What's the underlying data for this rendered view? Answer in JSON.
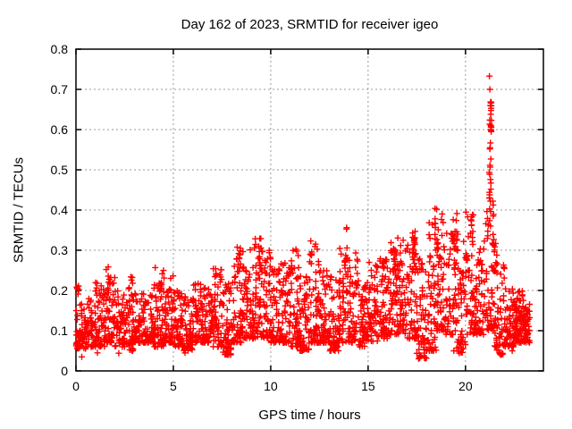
{
  "chart_data": {
    "type": "scatter",
    "title": "Day 162 of 2023, SRMTID for receiver igeo",
    "xlabel": "GPS time / hours",
    "ylabel": "SRMTID / TECUs",
    "xlim": [
      0,
      24
    ],
    "ylim": [
      0,
      0.8
    ],
    "xticks": {
      "values": [
        0,
        5,
        10,
        15,
        20
      ],
      "labels": [
        "0",
        "5",
        "10",
        "15",
        "20"
      ]
    },
    "yticks": {
      "values": [
        0,
        0.1,
        0.2,
        0.3,
        0.4,
        0.5,
        0.6,
        0.7,
        0.8
      ],
      "labels": [
        "0",
        "0.1",
        "0.2",
        "0.3",
        "0.4",
        "0.5",
        "0.6",
        "0.7",
        "0.8"
      ]
    },
    "grid": {
      "visible": true,
      "style": "dotted",
      "color": "#999999"
    },
    "axis_color": "#000000",
    "background": "#ffffff",
    "marker": {
      "symbol": "plus",
      "color": "#ff0000",
      "size": 7
    },
    "x_data_range": [
      0,
      23.3
    ],
    "y_data_max": 0.733,
    "series": {
      "name": "SRMTID",
      "representation": "density-bands",
      "seed": 162,
      "skew_exponent": 1.7,
      "bands": [
        [
          0.0,
          0.5,
          55,
          0.055,
          0.17
        ],
        [
          0.5,
          1.0,
          55,
          0.06,
          0.18
        ],
        [
          1.0,
          1.5,
          55,
          0.06,
          0.22
        ],
        [
          1.5,
          2.0,
          55,
          0.07,
          0.26
        ],
        [
          2.0,
          2.5,
          55,
          0.06,
          0.22
        ],
        [
          2.5,
          3.0,
          55,
          0.05,
          0.24
        ],
        [
          3.0,
          3.5,
          55,
          0.07,
          0.21
        ],
        [
          3.5,
          4.0,
          55,
          0.07,
          0.2
        ],
        [
          4.0,
          4.5,
          55,
          0.06,
          0.26
        ],
        [
          4.5,
          5.0,
          55,
          0.07,
          0.24
        ],
        [
          5.0,
          5.5,
          55,
          0.06,
          0.2
        ],
        [
          5.5,
          6.0,
          55,
          0.05,
          0.19
        ],
        [
          6.0,
          6.5,
          55,
          0.07,
          0.22
        ],
        [
          6.5,
          7.0,
          55,
          0.07,
          0.21
        ],
        [
          7.0,
          7.5,
          55,
          0.06,
          0.26
        ],
        [
          7.5,
          8.0,
          55,
          0.04,
          0.22
        ],
        [
          8.0,
          8.5,
          55,
          0.07,
          0.3
        ],
        [
          8.5,
          9.0,
          55,
          0.08,
          0.31
        ],
        [
          9.0,
          9.5,
          55,
          0.08,
          0.33
        ],
        [
          9.5,
          10.0,
          55,
          0.08,
          0.3
        ],
        [
          10.0,
          10.5,
          55,
          0.07,
          0.26
        ],
        [
          10.5,
          11.0,
          55,
          0.07,
          0.28
        ],
        [
          11.0,
          11.5,
          55,
          0.06,
          0.31
        ],
        [
          11.5,
          12.0,
          55,
          0.05,
          0.24
        ],
        [
          12.0,
          12.5,
          55,
          0.07,
          0.32
        ],
        [
          12.5,
          13.0,
          55,
          0.07,
          0.25
        ],
        [
          13.0,
          13.5,
          55,
          0.05,
          0.24
        ],
        [
          13.5,
          14.0,
          55,
          0.07,
          0.33
        ],
        [
          14.0,
          14.5,
          55,
          0.07,
          0.3
        ],
        [
          14.5,
          15.0,
          55,
          0.06,
          0.22
        ],
        [
          15.0,
          15.5,
          55,
          0.07,
          0.27
        ],
        [
          15.5,
          16.0,
          55,
          0.08,
          0.28
        ],
        [
          16.0,
          16.5,
          55,
          0.09,
          0.32
        ],
        [
          16.5,
          17.0,
          55,
          0.09,
          0.34
        ],
        [
          17.0,
          17.5,
          55,
          0.08,
          0.35
        ],
        [
          17.5,
          18.0,
          55,
          0.03,
          0.28
        ],
        [
          18.0,
          18.5,
          55,
          0.05,
          0.38
        ],
        [
          18.5,
          19.0,
          55,
          0.1,
          0.4
        ],
        [
          19.0,
          19.5,
          55,
          0.09,
          0.38
        ],
        [
          19.5,
          20.0,
          55,
          0.04,
          0.35
        ],
        [
          20.0,
          20.5,
          55,
          0.09,
          0.4
        ],
        [
          20.5,
          21.0,
          55,
          0.09,
          0.33
        ],
        [
          21.0,
          21.5,
          55,
          0.1,
          0.4
        ],
        [
          21.5,
          22.0,
          55,
          0.04,
          0.3
        ],
        [
          22.0,
          22.5,
          55,
          0.06,
          0.22
        ],
        [
          22.5,
          23.0,
          60,
          0.07,
          0.2
        ],
        [
          23.0,
          23.3,
          35,
          0.07,
          0.17
        ]
      ],
      "clusters": [
        [
          0.08,
          0.07,
          6,
          0.19,
          0.22
        ],
        [
          1.7,
          0.1,
          6,
          0.2,
          0.26
        ],
        [
          4.35,
          0.08,
          5,
          0.2,
          0.26
        ],
        [
          8.35,
          0.1,
          8,
          0.24,
          0.31
        ],
        [
          9.45,
          0.1,
          10,
          0.25,
          0.33
        ],
        [
          11.1,
          0.06,
          6,
          0.24,
          0.3
        ],
        [
          12.05,
          0.06,
          8,
          0.26,
          0.34
        ],
        [
          13.85,
          0.06,
          8,
          0.26,
          0.36
        ],
        [
          16.3,
          0.15,
          10,
          0.24,
          0.31
        ],
        [
          17.35,
          0.08,
          8,
          0.26,
          0.35
        ],
        [
          18.55,
          0.12,
          12,
          0.28,
          0.41
        ],
        [
          19.5,
          0.06,
          6,
          0.3,
          0.4
        ],
        [
          20.3,
          0.08,
          8,
          0.28,
          0.4
        ],
        [
          21.28,
          0.06,
          20,
          0.38,
          0.68
        ],
        [
          21.3,
          0.04,
          8,
          0.6,
          0.67
        ],
        [
          21.5,
          0.1,
          8,
          0.25,
          0.45
        ],
        [
          22.85,
          0.35,
          40,
          0.09,
          0.16
        ]
      ],
      "outliers": [
        [
          21.23,
          0.733
        ],
        [
          21.25,
          0.7
        ],
        [
          21.3,
          0.61
        ],
        [
          21.32,
          0.595
        ],
        [
          21.28,
          0.567
        ],
        [
          21.26,
          0.555
        ],
        [
          21.3,
          0.527
        ],
        [
          21.27,
          0.507
        ],
        [
          21.24,
          0.489
        ],
        [
          21.3,
          0.467
        ],
        [
          21.23,
          0.444
        ],
        [
          21.28,
          0.422
        ],
        [
          0.3,
          0.035
        ],
        [
          1.1,
          0.045
        ],
        [
          2.2,
          0.044
        ],
        [
          5.6,
          0.045
        ],
        [
          7.8,
          0.045
        ],
        [
          11.5,
          0.05
        ],
        [
          13.3,
          0.05
        ],
        [
          17.65,
          0.035
        ],
        [
          18.0,
          0.05
        ],
        [
          19.4,
          0.05
        ],
        [
          21.8,
          0.04
        ],
        [
          22.4,
          0.05
        ]
      ]
    }
  }
}
